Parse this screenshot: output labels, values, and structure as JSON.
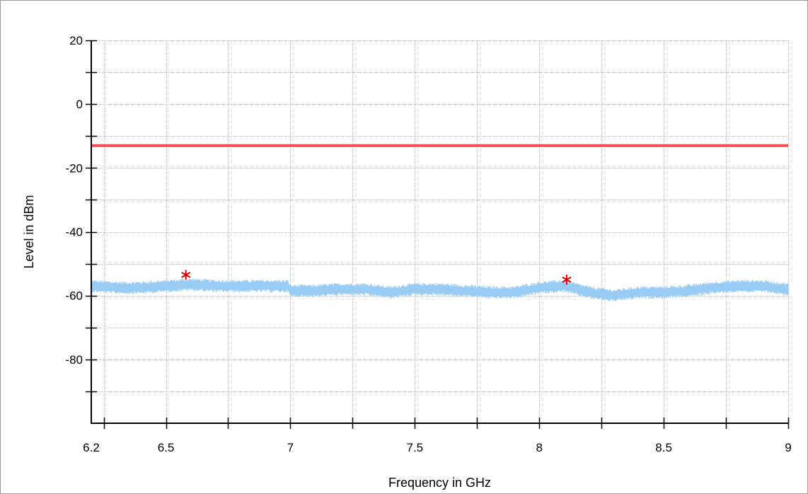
{
  "chart_data": {
    "type": "line",
    "xlabel": "Frequency in GHz",
    "ylabel": "Level in dBm",
    "xlim": [
      6.2,
      9.0
    ],
    "ylim": [
      -100,
      20
    ],
    "x_ticks": [
      6.25,
      6.5,
      6.75,
      7.0,
      7.25,
      7.5,
      7.75,
      8.0,
      8.25,
      8.5,
      8.75,
      9.0
    ],
    "x_tick_labels": [
      {
        "value": 6.2,
        "label": "6.2"
      },
      {
        "value": 6.5,
        "label": "6.5"
      },
      {
        "value": 7.0,
        "label": "7"
      },
      {
        "value": 7.5,
        "label": "7.5"
      },
      {
        "value": 8.0,
        "label": "8"
      },
      {
        "value": 8.5,
        "label": "8.5"
      },
      {
        "value": 9.0,
        "label": "9"
      }
    ],
    "y_ticks": [
      20,
      10,
      0,
      -10,
      -20,
      -30,
      -40,
      -50,
      -60,
      -70,
      -80,
      -90
    ],
    "y_tick_labels": [
      {
        "value": 20,
        "label": "20"
      },
      {
        "value": 0,
        "label": "0"
      },
      {
        "value": -20,
        "label": "-20"
      },
      {
        "value": -40,
        "label": "-40"
      },
      {
        "value": -60,
        "label": "-60"
      },
      {
        "value": -80,
        "label": "-80"
      }
    ],
    "grid": true,
    "series": [
      {
        "color": "#99ccf5",
        "band_width_db": 4,
        "x": [
          6.2,
          6.3,
          6.4,
          6.5,
          6.6,
          6.7,
          6.8,
          6.9,
          6.99,
          7.0,
          7.1,
          7.2,
          7.3,
          7.4,
          7.5,
          7.6,
          7.7,
          7.8,
          7.9,
          8.0,
          8.1,
          8.2,
          8.3,
          8.4,
          8.5,
          8.6,
          8.7,
          8.8,
          8.9,
          9.0
        ],
        "y": [
          -57,
          -57.5,
          -57.5,
          -57,
          -56.5,
          -57,
          -57,
          -57,
          -57,
          -58.5,
          -58.5,
          -58,
          -58,
          -59,
          -58,
          -58,
          -58.5,
          -59,
          -59,
          -57.5,
          -57,
          -59,
          -60,
          -59,
          -59,
          -58.5,
          -57.5,
          -57,
          -57,
          -58
        ]
      },
      {
        "color": "#f05050",
        "x": [
          6.2,
          9.0
        ],
        "y": [
          -13,
          -13
        ]
      }
    ],
    "markers": [
      {
        "x": 6.58,
        "y": -53.5,
        "symbol": "*",
        "color": "#e00000"
      },
      {
        "x": 8.11,
        "y": -55,
        "symbol": "*",
        "color": "#e00000"
      }
    ]
  }
}
